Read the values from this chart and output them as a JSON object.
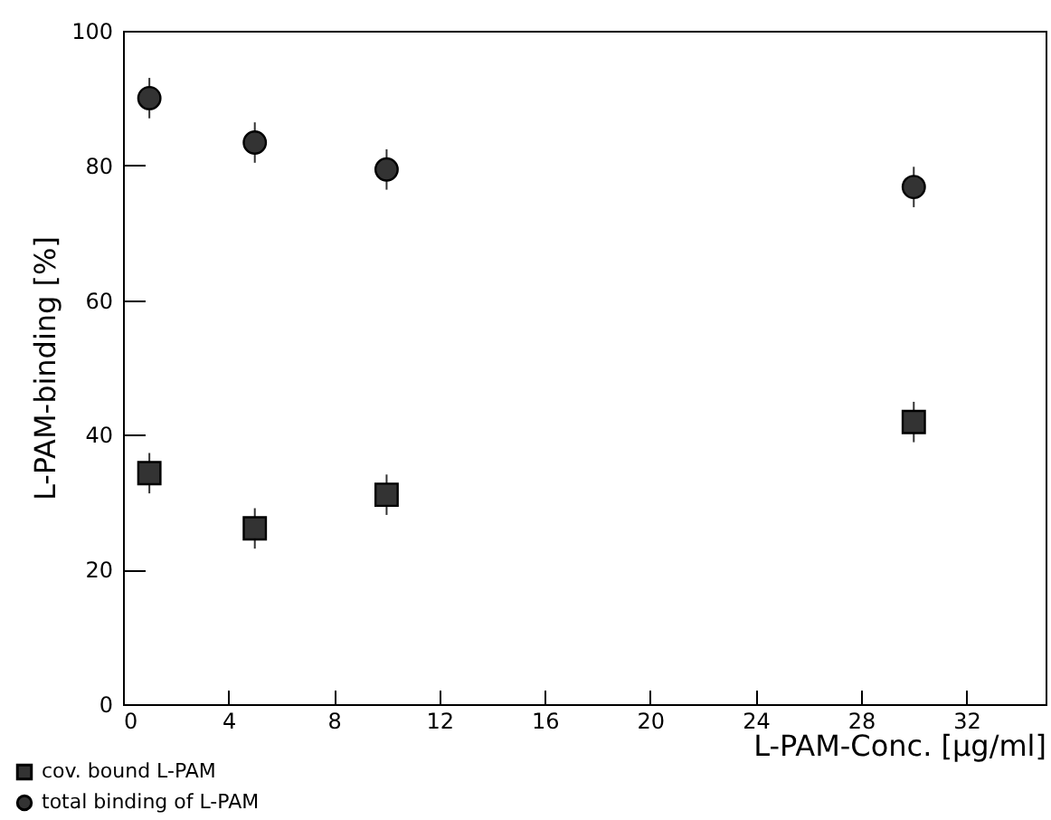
{
  "chart_data": {
    "type": "scatter",
    "xlabel": "L-PAM-Conc. [µg/ml]",
    "ylabel": "L-PAM-binding [%]",
    "xlim": [
      0,
      35
    ],
    "xticks": [
      0,
      4,
      8,
      12,
      16,
      20,
      24,
      28,
      32
    ],
    "ylim": [
      0,
      100
    ],
    "yticks": [
      0,
      20,
      40,
      60,
      80,
      100
    ],
    "grid": false,
    "legend": "bottom left",
    "series": [
      {
        "name": "cov. bound L-PAM",
        "color": "#333333",
        "marker": "square",
        "x": [
          1,
          5,
          10,
          30
        ],
        "values": [
          34.3,
          26.1,
          31.1,
          41.9
        ],
        "errors": [
          3,
          3,
          3,
          3
        ]
      },
      {
        "name": "total binding of L-PAM",
        "color": "#333333",
        "marker": "circle",
        "x": [
          1,
          5,
          10,
          30
        ],
        "values": [
          90,
          83.4,
          79.4,
          76.8
        ],
        "errors": [
          3,
          3,
          3,
          3
        ]
      }
    ]
  }
}
